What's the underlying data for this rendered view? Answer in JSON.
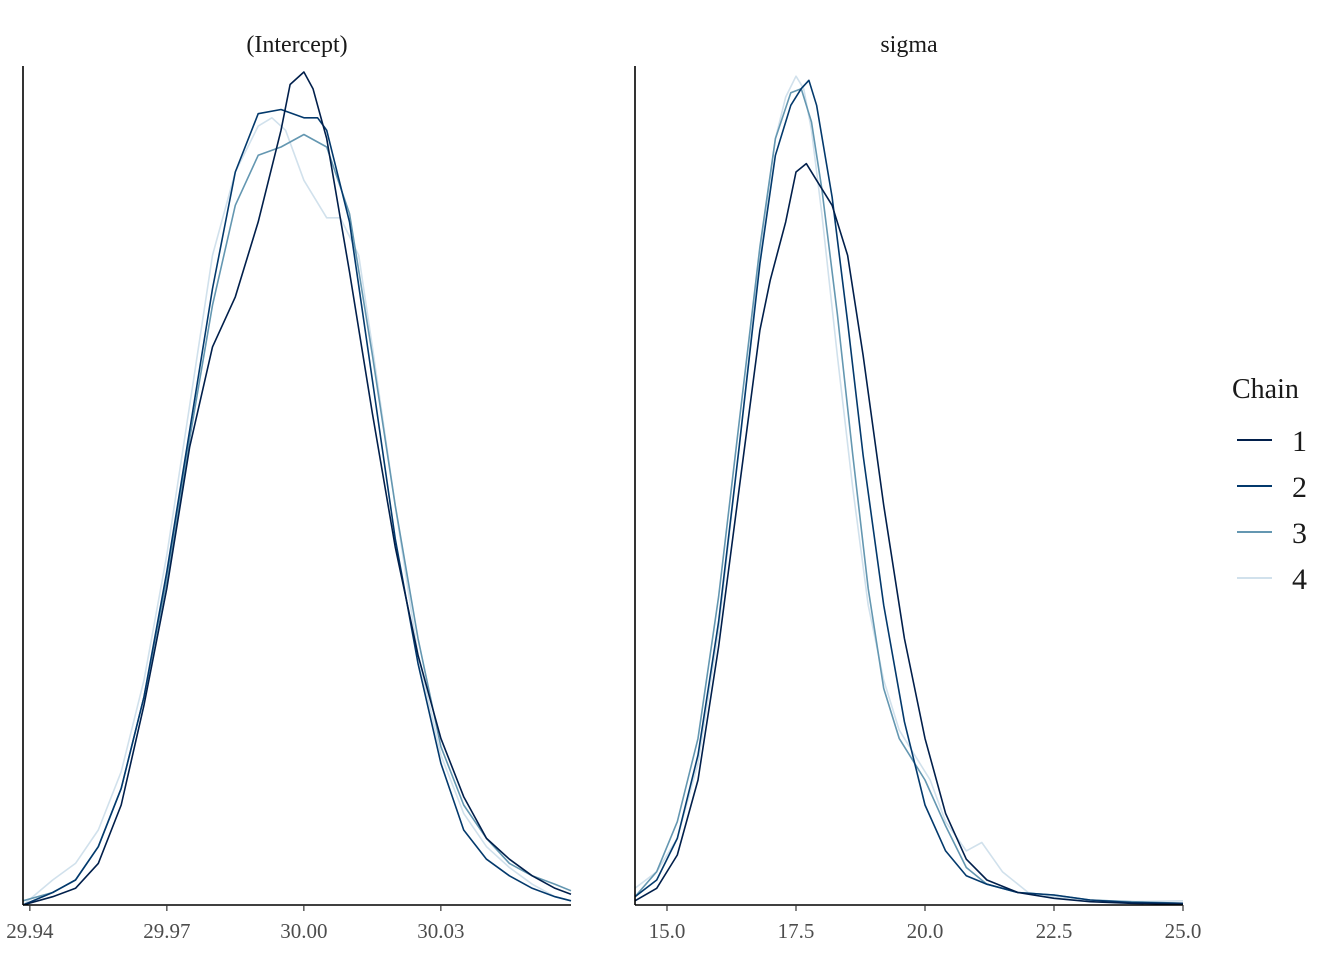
{
  "chart_data": {
    "type": "line",
    "subtype": "density-overlay",
    "colors": [
      "#011f4b",
      "#03396c",
      "#6497b1",
      "#d1e1ec"
    ],
    "legend": {
      "title": "Chain",
      "placement": "right",
      "entries": [
        "1",
        "2",
        "3",
        "4"
      ]
    },
    "panels": [
      {
        "title": "(Intercept)",
        "xlim": [
          29.9385,
          30.0585
        ],
        "ylim": [
          0,
          1.0
        ],
        "x_ticks": [
          29.94,
          29.97,
          30.0,
          30.03
        ],
        "x_tick_labels": [
          "29.94",
          "29.97",
          "30.00",
          "30.03"
        ],
        "y_axis_labels": false,
        "grid": false,
        "series": [
          {
            "name": "1",
            "x": [
              29.9385,
              29.945,
              29.95,
              29.955,
              29.96,
              29.965,
              29.97,
              29.975,
              29.98,
              29.985,
              29.99,
              29.995,
              29.997,
              30.0,
              30.002,
              30.005,
              30.01,
              30.015,
              30.02,
              30.025,
              30.03,
              30.035,
              30.04,
              30.045,
              30.05,
              30.055,
              30.0585
            ],
            "y": [
              0.0,
              0.01,
              0.02,
              0.05,
              0.12,
              0.24,
              0.38,
              0.55,
              0.67,
              0.73,
              0.82,
              0.93,
              0.985,
              1.0,
              0.98,
              0.92,
              0.76,
              0.59,
              0.43,
              0.3,
              0.2,
              0.13,
              0.08,
              0.055,
              0.035,
              0.02,
              0.013
            ]
          },
          {
            "name": "2",
            "x": [
              29.9385,
              29.945,
              29.95,
              29.955,
              29.96,
              29.965,
              29.97,
              29.975,
              29.98,
              29.985,
              29.99,
              29.995,
              30.0,
              30.003,
              30.005,
              30.01,
              30.015,
              30.02,
              30.025,
              30.03,
              30.035,
              30.04,
              30.045,
              30.05,
              30.055,
              30.0585
            ],
            "y": [
              0.0,
              0.015,
              0.03,
              0.07,
              0.14,
              0.25,
              0.4,
              0.57,
              0.74,
              0.88,
              0.95,
              0.955,
              0.945,
              0.945,
              0.93,
              0.82,
              0.63,
              0.44,
              0.29,
              0.17,
              0.09,
              0.055,
              0.035,
              0.02,
              0.01,
              0.005
            ]
          },
          {
            "name": "3",
            "x": [
              29.9385,
              29.945,
              29.95,
              29.955,
              29.96,
              29.965,
              29.97,
              29.975,
              29.98,
              29.985,
              29.99,
              29.995,
              30.0,
              30.005,
              30.01,
              30.015,
              30.02,
              30.025,
              30.03,
              30.035,
              30.04,
              30.045,
              30.05,
              30.055,
              30.0585
            ],
            "y": [
              0.005,
              0.015,
              0.03,
              0.07,
              0.14,
              0.25,
              0.39,
              0.56,
              0.72,
              0.84,
              0.9,
              0.91,
              0.925,
              0.91,
              0.83,
              0.66,
              0.48,
              0.32,
              0.19,
              0.12,
              0.08,
              0.05,
              0.035,
              0.025,
              0.017
            ]
          },
          {
            "name": "4",
            "x": [
              29.9385,
              29.945,
              29.95,
              29.955,
              29.96,
              29.965,
              29.97,
              29.975,
              29.98,
              29.985,
              29.99,
              29.993,
              29.996,
              30.0,
              30.005,
              30.008,
              30.012,
              30.015,
              30.02,
              30.025,
              30.03,
              30.035,
              30.04,
              30.045,
              30.05,
              30.055,
              30.0585
            ],
            "y": [
              0.0,
              0.03,
              0.05,
              0.09,
              0.16,
              0.27,
              0.42,
              0.6,
              0.78,
              0.88,
              0.935,
              0.945,
              0.93,
              0.87,
              0.825,
              0.825,
              0.78,
              0.67,
              0.48,
              0.3,
              0.18,
              0.11,
              0.07,
              0.045,
              0.025,
              0.01,
              0.005
            ]
          }
        ]
      },
      {
        "title": "sigma",
        "xlim": [
          14.38,
          25.0
        ],
        "ylim": [
          0,
          1.0
        ],
        "x_ticks": [
          15.0,
          17.5,
          20.0,
          22.5,
          25.0
        ],
        "x_tick_labels": [
          "15.0",
          "17.5",
          "20.0",
          "22.5",
          "25.0"
        ],
        "y_axis_labels": false,
        "grid": false,
        "series": [
          {
            "name": "1",
            "x": [
              14.38,
              14.8,
              15.2,
              15.6,
              16.0,
              16.4,
              16.8,
              17.0,
              17.3,
              17.5,
              17.7,
              17.9,
              18.2,
              18.5,
              18.8,
              19.2,
              19.6,
              20.0,
              20.4,
              20.8,
              21.2,
              21.8,
              22.5,
              23.2,
              24.0,
              25.0
            ],
            "y": [
              0.005,
              0.02,
              0.06,
              0.15,
              0.31,
              0.5,
              0.69,
              0.75,
              0.82,
              0.88,
              0.89,
              0.87,
              0.84,
              0.78,
              0.66,
              0.48,
              0.32,
              0.2,
              0.11,
              0.055,
              0.03,
              0.015,
              0.008,
              0.004,
              0.002,
              0.001
            ]
          },
          {
            "name": "2",
            "x": [
              14.38,
              14.8,
              15.2,
              15.6,
              16.0,
              16.4,
              16.8,
              17.1,
              17.4,
              17.6,
              17.75,
              17.9,
              18.2,
              18.5,
              18.8,
              19.2,
              19.6,
              20.0,
              20.4,
              20.8,
              21.2,
              21.8,
              22.5,
              23.2,
              24.0,
              25.0
            ],
            "y": [
              0.01,
              0.03,
              0.08,
              0.18,
              0.34,
              0.55,
              0.77,
              0.9,
              0.96,
              0.98,
              0.99,
              0.96,
              0.85,
              0.7,
              0.54,
              0.36,
              0.22,
              0.12,
              0.065,
              0.035,
              0.025,
              0.015,
              0.012,
              0.006,
              0.003,
              0.002
            ]
          },
          {
            "name": "3",
            "x": [
              14.38,
              14.8,
              15.2,
              15.6,
              16.0,
              16.4,
              16.8,
              17.1,
              17.4,
              17.6,
              17.8,
              18.0,
              18.3,
              18.6,
              18.9,
              19.2,
              19.5,
              19.8,
              20.0,
              20.4,
              20.8,
              21.2,
              21.8,
              22.5,
              23.2,
              24.0,
              25.0
            ],
            "y": [
              0.01,
              0.04,
              0.1,
              0.2,
              0.37,
              0.58,
              0.79,
              0.92,
              0.975,
              0.98,
              0.94,
              0.86,
              0.71,
              0.54,
              0.38,
              0.26,
              0.2,
              0.17,
              0.15,
              0.095,
              0.045,
              0.025,
              0.015,
              0.012,
              0.006,
              0.004,
              0.002
            ]
          },
          {
            "name": "4",
            "x": [
              14.38,
              14.8,
              15.2,
              15.6,
              16.0,
              16.4,
              16.8,
              17.1,
              17.3,
              17.5,
              17.65,
              17.8,
              18.0,
              18.3,
              18.6,
              18.9,
              19.2,
              19.5,
              19.8,
              20.1,
              20.4,
              20.8,
              21.1,
              21.5,
              22.0,
              22.5,
              23.2,
              24.0,
              25.0
            ],
            "y": [
              0.02,
              0.04,
              0.08,
              0.17,
              0.33,
              0.55,
              0.78,
              0.92,
              0.97,
              0.995,
              0.98,
              0.93,
              0.83,
              0.66,
              0.5,
              0.36,
              0.27,
              0.21,
              0.18,
              0.15,
              0.1,
              0.065,
              0.075,
              0.04,
              0.015,
              0.01,
              0.006,
              0.004,
              0.005
            ]
          }
        ]
      }
    ]
  }
}
